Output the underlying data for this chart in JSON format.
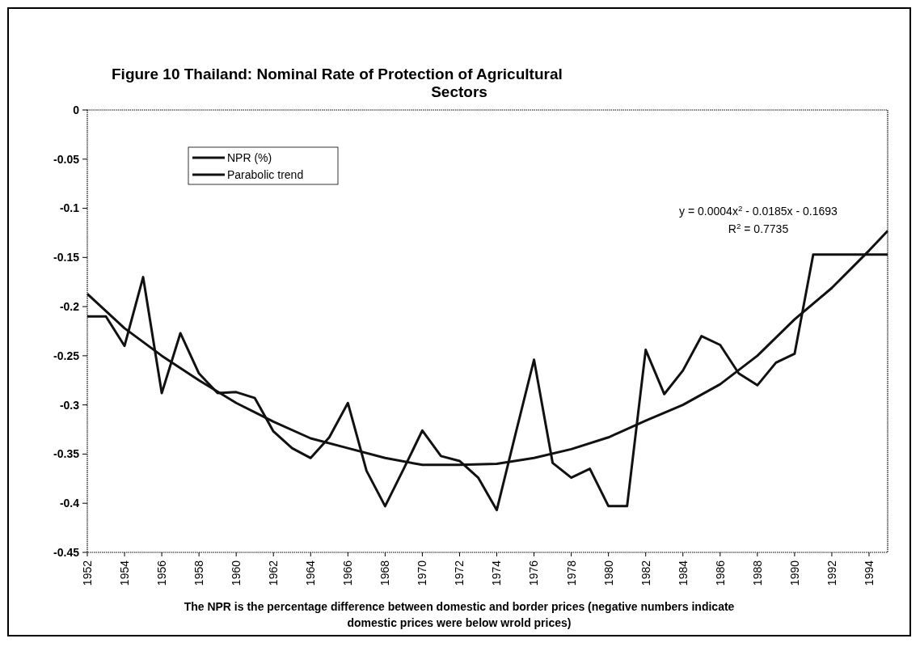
{
  "chart_data": {
    "type": "line",
    "title": "Figure 10   Thailand: Nominal Rate of Protection of Agricultural Sectors",
    "x": [
      1952,
      1953,
      1954,
      1955,
      1956,
      1957,
      1958,
      1959,
      1960,
      1961,
      1962,
      1963,
      1964,
      1965,
      1966,
      1967,
      1968,
      1969,
      1970,
      1971,
      1972,
      1973,
      1974,
      1975,
      1976,
      1977,
      1978,
      1979,
      1980,
      1981,
      1982,
      1983,
      1984,
      1985,
      1986,
      1987,
      1988,
      1989,
      1990,
      1991,
      1992,
      1993,
      1994,
      1995
    ],
    "series": [
      {
        "name": "NPR (%)",
        "color": "#111111",
        "values": [
          -0.21,
          -0.21,
          -0.24,
          -0.17,
          -0.288,
          -0.227,
          -0.268,
          -0.288,
          -0.287,
          -0.293,
          -0.327,
          -0.344,
          -0.354,
          -0.333,
          -0.298,
          -0.367,
          -0.403,
          -0.365,
          -0.326,
          -0.352,
          -0.357,
          -0.374,
          -0.407,
          -0.33,
          -0.254,
          -0.359,
          -0.374,
          -0.365,
          -0.403,
          -0.403,
          -0.244,
          -0.289,
          -0.265,
          -0.23,
          -0.239,
          -0.268,
          -0.28,
          -0.257,
          -0.248,
          -0.147,
          -0.147,
          -0.147,
          -0.147,
          -0.147
        ]
      },
      {
        "name": "Parabolic trend",
        "type": "line",
        "color": "#111111",
        "x": [
          1952,
          1954,
          1956,
          1958,
          1960,
          1962,
          1964,
          1966,
          1968,
          1970,
          1972,
          1974,
          1976,
          1978,
          1980,
          1982,
          1984,
          1986,
          1988,
          1990,
          1992,
          1994,
          1995
        ],
        "values": [
          -0.187,
          -0.222,
          -0.25,
          -0.275,
          -0.298,
          -0.317,
          -0.334,
          -0.344,
          -0.354,
          -0.361,
          -0.361,
          -0.36,
          -0.354,
          -0.345,
          -0.333,
          -0.316,
          -0.3,
          -0.279,
          -0.25,
          -0.213,
          -0.181,
          -0.143,
          -0.123
        ]
      }
    ],
    "xlim": [
      1952,
      1995
    ],
    "xticks": [
      1952,
      1954,
      1956,
      1958,
      1960,
      1962,
      1964,
      1966,
      1968,
      1970,
      1972,
      1974,
      1976,
      1978,
      1980,
      1982,
      1984,
      1986,
      1988,
      1990,
      1992,
      1994
    ],
    "ylim": [
      -0.45,
      0
    ],
    "yticks": [
      0,
      -0.05,
      -0.1,
      -0.15,
      -0.2,
      -0.25,
      -0.3,
      -0.35,
      -0.4,
      -0.45
    ],
    "legend": "top left",
    "grid": false,
    "marker": "none",
    "line_style": "solid",
    "annotations": [
      "y = 0.0004x$^{2}$ - 0.0185x - 0.1693",
      "R$^{2}$ = 0.7735",
      "The NPR is the percentage difference between domestic and border prices (negative numbers indicate domestic prices were below wrold prices)"
    ]
  }
}
